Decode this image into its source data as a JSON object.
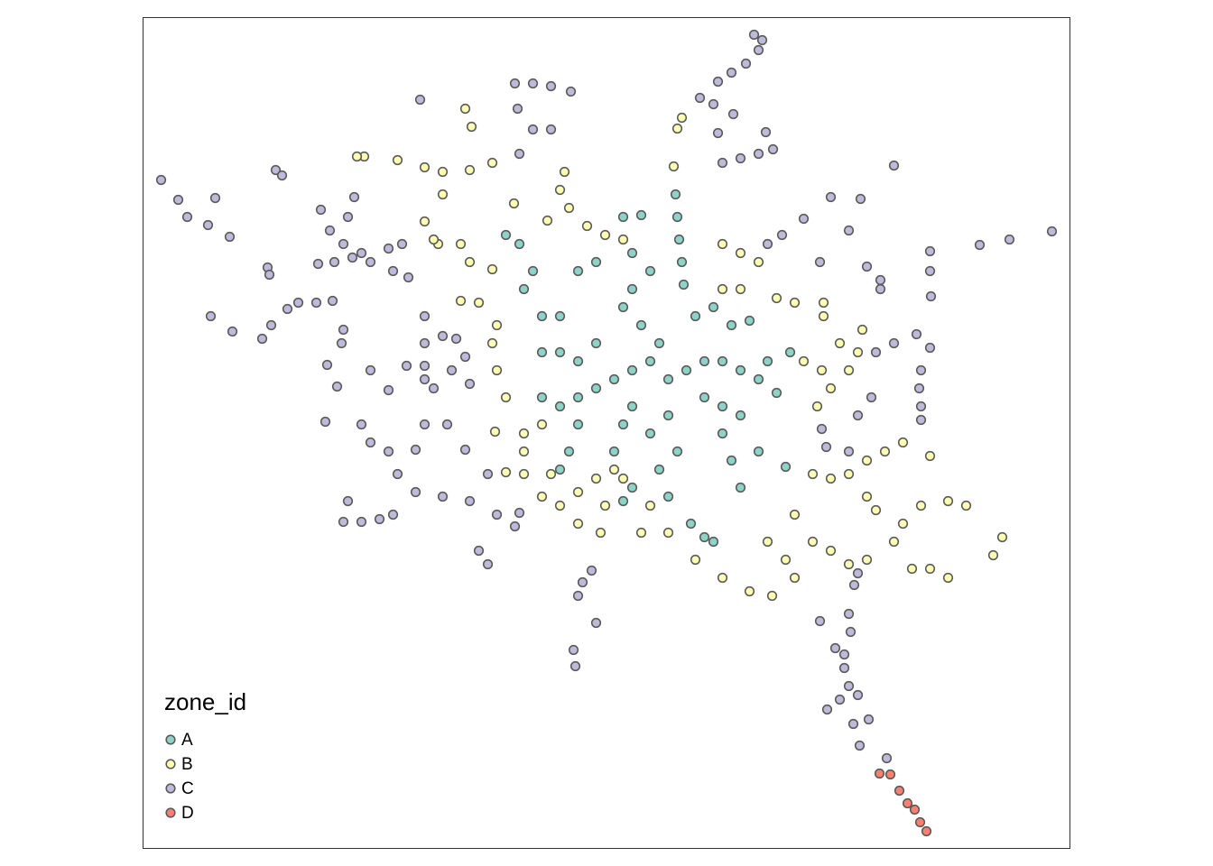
{
  "chart_data": {
    "type": "scatter",
    "legend_title": "zone_id",
    "legend": "bottom-left",
    "xlim": [
      0,
      1027
    ],
    "ylim": [
      0,
      921
    ],
    "series": [
      {
        "name": "A",
        "color": "#8DD3C7",
        "x": [
          590,
          592,
          594,
          597,
          599,
          562,
          542,
          532,
          552,
          572,
          562,
          542,
          522,
          502,
          482,
          462,
          442,
          582,
          602,
          622,
          642,
          662,
          682,
          702,
          717,
          692,
          622,
          642,
          662,
          542,
          532,
          522,
          562,
          572,
          582,
          592,
          642,
          652,
          662,
          682,
          712,
          402,
          417,
          432,
          442,
          462,
          482,
          502,
          532,
          552,
          442,
          462,
          482,
          612,
          632,
          652,
          672,
          482,
          472,
          462,
          542,
          532,
          607,
          632,
          622,
          422,
          542,
          502,
          582
        ],
        "y": [
          725,
          700,
          675,
          650,
          625,
          640,
          620,
          600,
          580,
          560,
          540,
          530,
          520,
          510,
          500,
          490,
          500,
          520,
          530,
          540,
          540,
          530,
          520,
          505,
          550,
          540,
          500,
          490,
          480,
          490,
          470,
          440,
          460,
          420,
          390,
          440,
          460,
          430,
          400,
          440,
          423,
          680,
          670,
          640,
          590,
          590,
          640,
          650,
          700,
          702,
          550,
          550,
          540,
          590,
          600,
          580,
          585,
          470,
          440,
          420,
          400,
          385,
          360,
          340,
          345,
          620,
          660,
          560,
          480
        ]
      },
      {
        "name": "B",
        "color": "#FFFFB3",
        "x": [
          245,
          237,
          282,
          312,
          332,
          362,
          387,
          357,
          364,
          332,
          312,
          327,
          322,
          352,
          362,
          387,
          352,
          372,
          392,
          387,
          392,
          402,
          390,
          422,
          442,
          422,
          402,
          422,
          452,
          442,
          462,
          482,
          502,
          522,
          532,
          512,
          507,
          482,
          552,
          562,
          582,
          612,
          642,
          672,
          697,
          722,
          712,
          692,
          722,
          742,
          762,
          782,
          802,
          832,
          842,
          862,
          892,
          912,
          952,
          942,
          892,
          872,
          852,
          812,
          802,
          782,
          802,
          822,
          842,
          872,
          742,
          762,
          732,
          752,
          762,
          772,
          792,
          782,
          797,
          747,
          642,
          662,
          682,
          642,
          662,
          702,
          722,
          754,
          754,
          467,
          462,
          472,
          492,
          512,
          532,
          597,
          592,
          588,
          448,
          411
        ],
        "y": [
          767,
          767,
          763,
          755,
          750,
          752,
          760,
          820,
          800,
          725,
          695,
          670,
          675,
          670,
          650,
          642,
          607,
          605,
          580,
          560,
          530,
          500,
          462,
          460,
          470,
          440,
          417,
          415,
          415,
          390,
          380,
          395,
          410,
          420,
          410,
          380,
          350,
          360,
          350,
          380,
          350,
          320,
          300,
          285,
          280,
          300,
          320,
          340,
          370,
          340,
          330,
          315,
          320,
          340,
          360,
          380,
          385,
          380,
          345,
          325,
          300,
          310,
          310,
          375,
          390,
          415,
          430,
          440,
          450,
          435,
          415,
          410,
          540,
          530,
          510,
          560,
          550,
          530,
          575,
          490,
          670,
          660,
          650,
          620,
          620,
          610,
          605,
          590,
          605,
          750,
          730,
          710,
          690,
          680,
          675,
          810,
          798,
          756,
          696,
          715
        ]
      },
      {
        "name": "C",
        "color": "#BEBADA",
        "x": [
          20,
          39,
          49,
          72,
          96,
          80,
          147,
          154,
          138,
          140,
          75,
          99,
          132,
          142,
          160,
          172,
          192,
          194,
          212,
          232,
          252,
          272,
          287,
          234,
          227,
          197,
          207,
          222,
          242,
          277,
          294,
          307,
          412,
          432,
          452,
          474,
          415,
          417,
          432,
          452,
          617,
          632,
          654,
          637,
          642,
          662,
          682,
          698,
          690,
          637,
          652,
          668,
          682,
          677,
          686,
          832,
          1007,
          960,
          927,
          872,
          872,
          873,
          802,
          817,
          817,
          750,
          782,
          762,
          795,
          732,
          708,
          692,
          857,
          872,
          862,
          860,
          862,
          862,
          832,
          812,
          807,
          792,
          752,
          757,
          782,
          210,
          222,
          220,
          204,
          215,
          202,
          242,
          252,
          272,
          282,
          302,
          332,
          362,
          382,
          357,
          337,
          312,
          302,
          227,
          222,
          242,
          262,
          277,
          372,
          382,
          392,
          412,
          417,
          477,
          479,
          482,
          487,
          502,
          497,
          750,
          782,
          784,
          767,
          777,
          777,
          782,
          772,
          758,
          792,
          804,
          787,
          794,
          824,
          788,
          792,
          252,
          272,
          292,
          312,
          312,
          322,
          342,
          362,
          312,
          312,
          332,
          347,
          357
        ],
        "y": [
          741,
          719,
          700,
          691,
          678,
          721,
          752,
          746,
          644,
          636,
          590,
          573,
          565,
          580,
          598,
          605,
          605,
          648,
          650,
          655,
          650,
          665,
          670,
          722,
          700,
          708,
          685,
          670,
          660,
          640,
          633,
          830,
          848,
          848,
          845,
          839,
          820,
          770,
          797,
          797,
          832,
          825,
          814,
          793,
          760,
          765,
          770,
          775,
          794,
          850,
          860,
          870,
          885,
          902,
          896,
          757,
          684,
          675,
          669,
          662,
          640,
          612,
          645,
          630,
          620,
          650,
          685,
          722,
          720,
          698,
          680,
          670,
          570,
          555,
          530,
          510,
          490,
          475,
          560,
          550,
          500,
          480,
          465,
          445,
          440,
          607,
          575,
          560,
          536,
          512,
          473,
          470,
          450,
          440,
          415,
          395,
          390,
          385,
          415,
          442,
          470,
          470,
          442,
          385,
          362,
          362,
          365,
          370,
          330,
          315,
          370,
          357,
          372,
          220,
          202,
          280,
          295,
          250,
          308,
          252,
          260,
          240,
          222,
          215,
          200,
          180,
          165,
          154,
          170,
          143,
          138,
          114,
          100,
          292,
          305,
          530,
          508,
          535,
          535,
          520,
          510,
          530,
          515,
          590,
          560,
          568,
          565,
          545
        ]
      },
      {
        "name": "D",
        "color": "#FB8072",
        "x": [
          816,
          828,
          838,
          847,
          855,
          861,
          868
        ],
        "y": [
          83,
          82,
          64,
          50,
          43,
          29,
          19
        ]
      }
    ]
  }
}
